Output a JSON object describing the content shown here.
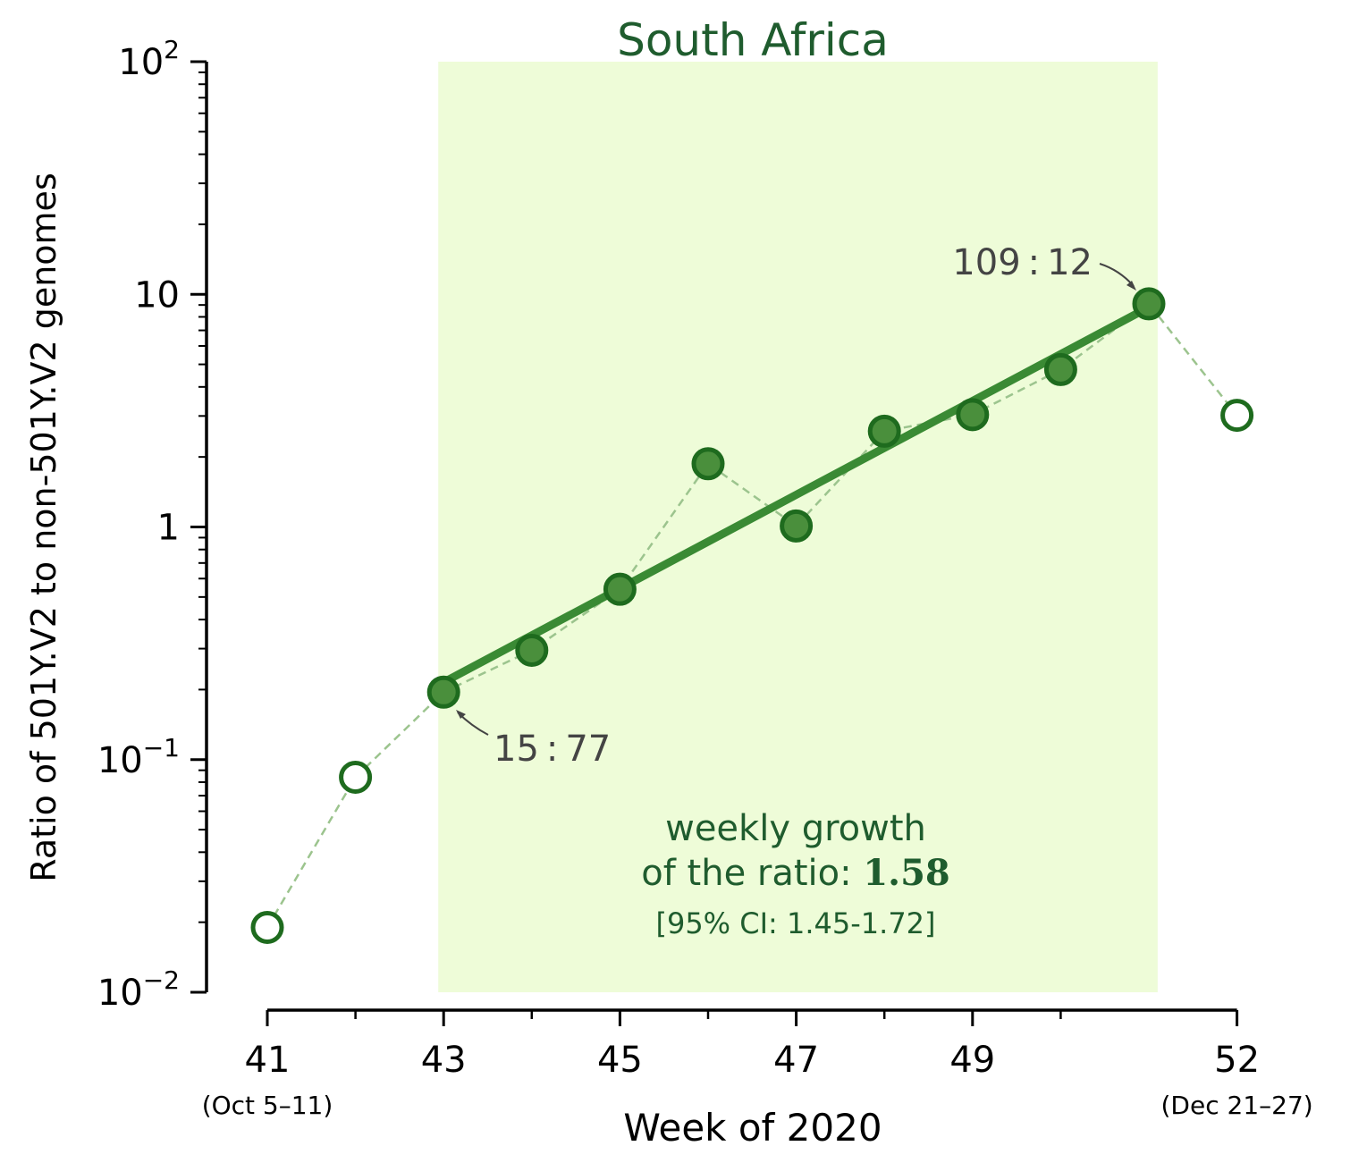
{
  "chart_data": {
    "type": "scatter",
    "title": "South Africa",
    "xlabel": "Week of 2020",
    "ylabel": "Ratio of 501Y.V2 to non-501Y.V2 genomes",
    "yscale": "log",
    "ylim": [
      0.01,
      100
    ],
    "xlim": [
      40.7,
      52.2
    ],
    "x_ticks": [
      {
        "value": 41,
        "label": "41",
        "sublabel": "(Oct 5–11)"
      },
      {
        "value": 43,
        "label": "43",
        "sublabel": ""
      },
      {
        "value": 45,
        "label": "45",
        "sublabel": ""
      },
      {
        "value": 47,
        "label": "47",
        "sublabel": ""
      },
      {
        "value": 49,
        "label": "49",
        "sublabel": ""
      },
      {
        "value": 52,
        "label": "52",
        "sublabel": "(Dec 21–27)"
      }
    ],
    "x_minor_ticks": [
      42,
      44,
      46,
      48,
      50
    ],
    "y_ticks": [
      {
        "value": 100,
        "base": "10",
        "exp": "2"
      },
      {
        "value": 10,
        "base": "10",
        "exp": ""
      },
      {
        "value": 1,
        "base": "1",
        "exp": ""
      },
      {
        "value": 0.1,
        "base": "10",
        "exp": "−1"
      },
      {
        "value": 0.01,
        "base": "10",
        "exp": "−2"
      }
    ],
    "shaded_region": {
      "x_start": 43,
      "x_end": 51.1
    },
    "series": [
      {
        "name": "weekly ratio",
        "points": [
          {
            "x": 41,
            "y": 0.019,
            "fitted": false
          },
          {
            "x": 42,
            "y": 0.084,
            "fitted": false
          },
          {
            "x": 43,
            "y": 0.195,
            "fitted": true
          },
          {
            "x": 44,
            "y": 0.295,
            "fitted": true
          },
          {
            "x": 45,
            "y": 0.54,
            "fitted": true
          },
          {
            "x": 46,
            "y": 1.87,
            "fitted": true
          },
          {
            "x": 47,
            "y": 1.01,
            "fitted": true
          },
          {
            "x": 48,
            "y": 2.58,
            "fitted": true
          },
          {
            "x": 49,
            "y": 3.04,
            "fitted": true
          },
          {
            "x": 50,
            "y": 4.75,
            "fitted": true
          },
          {
            "x": 51,
            "y": 9.1,
            "fitted": true
          },
          {
            "x": 52,
            "y": 3.02,
            "fitted": false
          }
        ]
      }
    ],
    "fit_line": {
      "x_start": 43,
      "y_start": 0.215,
      "x_end": 51,
      "y_end": 8.8
    },
    "annotations": {
      "first": {
        "text": "15 : 77",
        "x": 43,
        "y": 0.195
      },
      "last": {
        "text": "109 : 12",
        "x": 51,
        "y": 9.1
      }
    },
    "growth_text": {
      "line1": "weekly growth",
      "line2_prefix": "of the ratio: ",
      "line2_value": "1.58",
      "ci": "[95% CI: 1.45-1.72]"
    },
    "colors": {
      "accent": "#1f5c2e",
      "marker_edge": "#1e6b1e",
      "marker_fill": "#4a8f3c",
      "fit_line": "#3a8a34",
      "dashed_line": "#9cc48e",
      "shade": "#eefcd8",
      "annotation": "#444444"
    }
  }
}
